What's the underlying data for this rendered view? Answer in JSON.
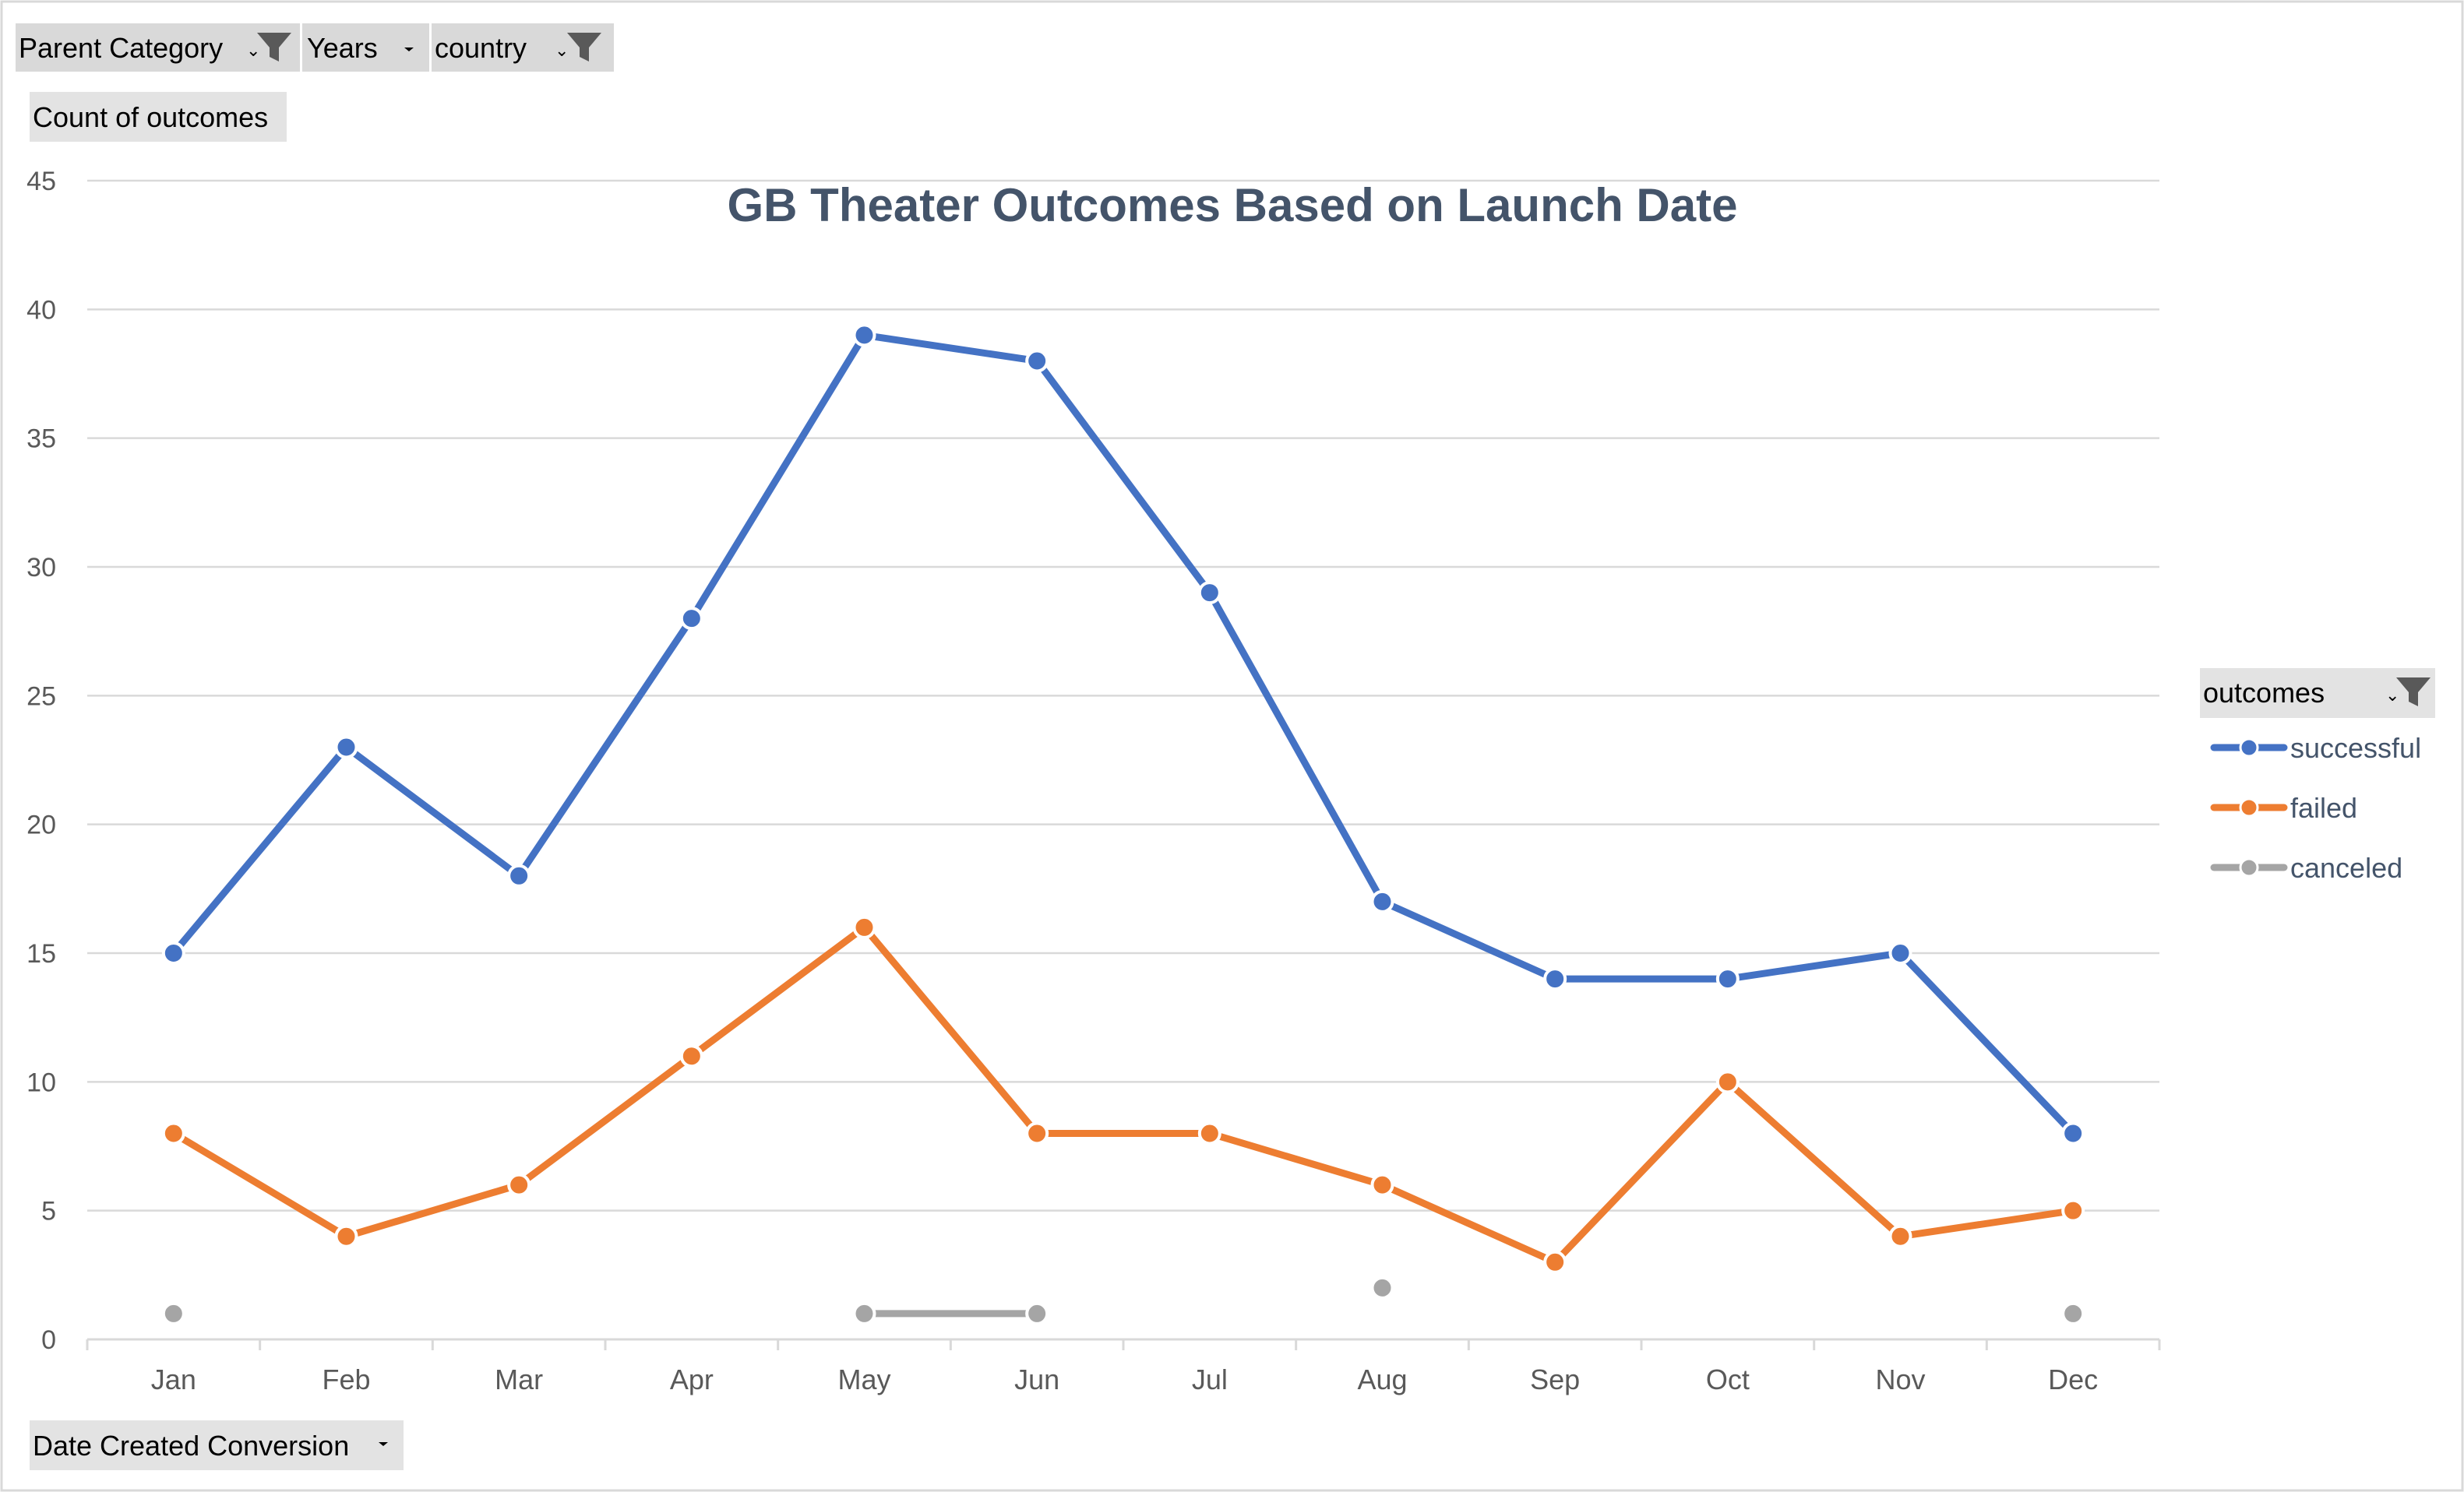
{
  "filters": {
    "parent_category": "Parent Category",
    "years": "Years",
    "country": "country"
  },
  "value_field": "Count of outcomes",
  "axis_field": "Date Created Conversion",
  "legend": {
    "title": "outcomes"
  },
  "colors": {
    "successful": "#4472c4",
    "failed": "#ed7d31",
    "canceled": "#a5a5a5"
  },
  "chart_data": {
    "type": "line",
    "title": "GB Theater Outcomes Based on Launch Date",
    "xlabel": "",
    "ylabel": "",
    "categories": [
      "Jan",
      "Feb",
      "Mar",
      "Apr",
      "May",
      "Jun",
      "Jul",
      "Aug",
      "Sep",
      "Oct",
      "Nov",
      "Dec"
    ],
    "ylim": [
      0,
      45
    ],
    "yticks": [
      0,
      5,
      10,
      15,
      20,
      25,
      30,
      35,
      40,
      45
    ],
    "grid": true,
    "legend_position": "right",
    "series": [
      {
        "name": "successful",
        "values": [
          15,
          23,
          18,
          28,
          39,
          38,
          29,
          17,
          14,
          14,
          15,
          8
        ]
      },
      {
        "name": "failed",
        "values": [
          8,
          4,
          6,
          11,
          16,
          8,
          8,
          6,
          3,
          10,
          4,
          5
        ]
      },
      {
        "name": "canceled",
        "values": [
          1,
          null,
          null,
          null,
          1,
          1,
          null,
          2,
          null,
          null,
          null,
          1
        ]
      }
    ]
  }
}
